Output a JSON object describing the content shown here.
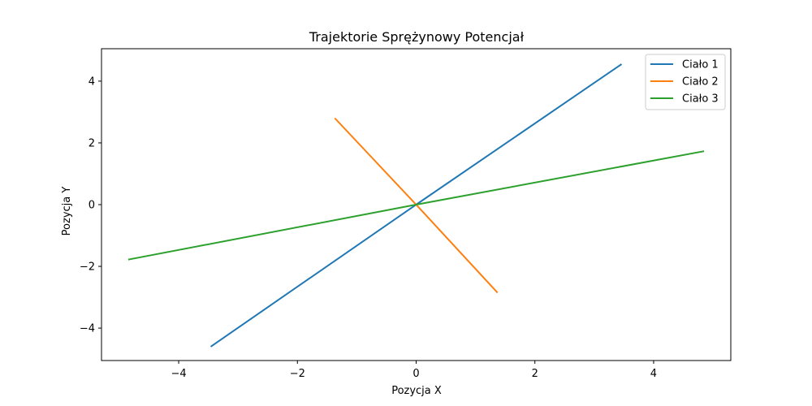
{
  "chart_data": {
    "type": "line",
    "title": "Trajektorie Sprężynowy Potencjał",
    "xlabel": "Pozycja X",
    "ylabel": "Pozycja Y",
    "xlim": [
      -5.3,
      5.3
    ],
    "ylim": [
      -5.05,
      5.05
    ],
    "xticks": [
      -4,
      -2,
      0,
      2,
      4
    ],
    "yticks": [
      -4,
      -2,
      0,
      2,
      4
    ],
    "xtick_labels": [
      "−4",
      "−2",
      "0",
      "2",
      "4"
    ],
    "ytick_labels": [
      "−4",
      "−2",
      "0",
      "2",
      "4"
    ],
    "grid": false,
    "legend_position": "top-right",
    "series": [
      {
        "name": "Ciało 1",
        "color": "#1f77b4",
        "x": [
          -3.46,
          0,
          3.46
        ],
        "y": [
          -4.6,
          0,
          4.55
        ]
      },
      {
        "name": "Ciało 2",
        "color": "#ff7f0e",
        "x": [
          -1.37,
          0,
          1.37
        ],
        "y": [
          2.8,
          0,
          -2.85
        ]
      },
      {
        "name": "Ciało 3",
        "color": "#2ca02c",
        "x": [
          -4.85,
          0,
          4.85
        ],
        "y": [
          -1.78,
          0,
          1.73
        ]
      }
    ]
  }
}
